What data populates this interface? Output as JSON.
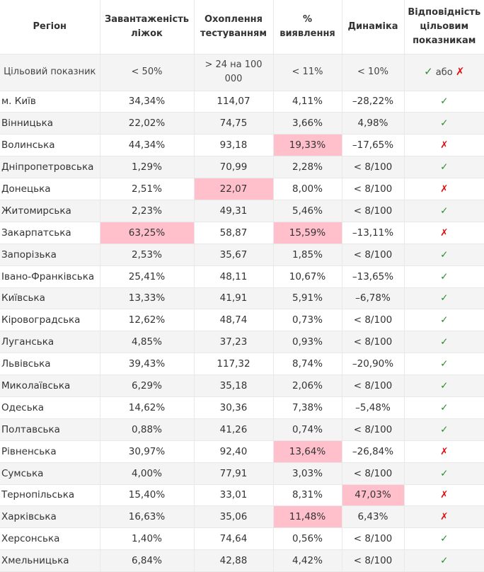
{
  "table": {
    "header": [
      "Регіон",
      "Завантаженість ліжок",
      "Охоплення тестуванням",
      "% виявлення",
      "Динаміка",
      "Відповідність цільовим показникам"
    ],
    "target": {
      "label": "Цільовий показник",
      "values": [
        "< 50%",
        "> 24 на 100 000",
        "< 11%",
        "< 10%"
      ],
      "yes": "✓",
      "connector": "або",
      "no": "✗"
    },
    "rows": [
      [
        "м. Київ",
        "34,34%",
        "114,07",
        "4,11%",
        "–28,22%",
        "✓"
      ],
      [
        "Вінницька",
        "22,02%",
        "74,75",
        "3,66%",
        "4,98%",
        "✓"
      ],
      [
        "Волинська",
        "44,34%",
        "93,18",
        "19,33%",
        "–17,65%",
        "✗"
      ],
      [
        "Дніпропетровська",
        "1,29%",
        "70,99",
        "2,28%",
        "< 8/100",
        "✓"
      ],
      [
        "Донецька",
        "2,51%",
        "22,07",
        "8,00%",
        "< 8/100",
        "✗"
      ],
      [
        "Житомирська",
        "2,23%",
        "49,31",
        "5,46%",
        "< 8/100",
        "✓"
      ],
      [
        "Закарпатська",
        "63,25%",
        "58,87",
        "15,59%",
        "–13,11%",
        "✗"
      ],
      [
        "Запорізька",
        "2,53%",
        "35,67",
        "1,85%",
        "< 8/100",
        "✓"
      ],
      [
        "Івано-Франківська",
        "25,41%",
        "48,11",
        "10,67%",
        "–13,65%",
        "✓"
      ],
      [
        "Київська",
        "13,33%",
        "41,91",
        "5,91%",
        "–6,78%",
        "✓"
      ],
      [
        "Кіровоградська",
        "12,62%",
        "48,74",
        "0,73%",
        "< 8/100",
        "✓"
      ],
      [
        "Луганська",
        "4,85%",
        "37,23",
        "0,93%",
        "< 8/100",
        "✓"
      ],
      [
        "Львівська",
        "39,43%",
        "117,32",
        "8,74%",
        "–20,90%",
        "✓"
      ],
      [
        "Миколаївська",
        "6,29%",
        "35,18",
        "2,06%",
        "< 8/100",
        "✓"
      ],
      [
        "Одеська",
        "14,62%",
        "30,36",
        "7,38%",
        "–5,48%",
        "✓"
      ],
      [
        "Полтавська",
        "0,88%",
        "41,26",
        "0,74%",
        "< 8/100",
        "✓"
      ],
      [
        "Рівненська",
        "30,97%",
        "92,40",
        "13,64%",
        "–26,84%",
        "✗"
      ],
      [
        "Сумська",
        "4,00%",
        "77,91",
        "3,03%",
        "< 8/100",
        "✓"
      ],
      [
        "Тернопільська",
        "15,40%",
        "33,01",
        "8,31%",
        "47,03%",
        "✗"
      ],
      [
        "Харківська",
        "16,63%",
        "35,06",
        "11,48%",
        "6,43%",
        "✗"
      ],
      [
        "Херсонська",
        "1,40%",
        "74,64",
        "0,56%",
        "< 8/100",
        "✓"
      ],
      [
        "Хмельницька",
        "6,84%",
        "42,88",
        "4,42%",
        "< 8/100",
        "✓"
      ]
    ],
    "highlight_color": "#ffc0cb",
    "highlighted_cells": [
      [
        2,
        3
      ],
      [
        4,
        2
      ],
      [
        6,
        1
      ],
      [
        6,
        3
      ],
      [
        16,
        3
      ],
      [
        18,
        4
      ],
      [
        19,
        3
      ]
    ]
  }
}
